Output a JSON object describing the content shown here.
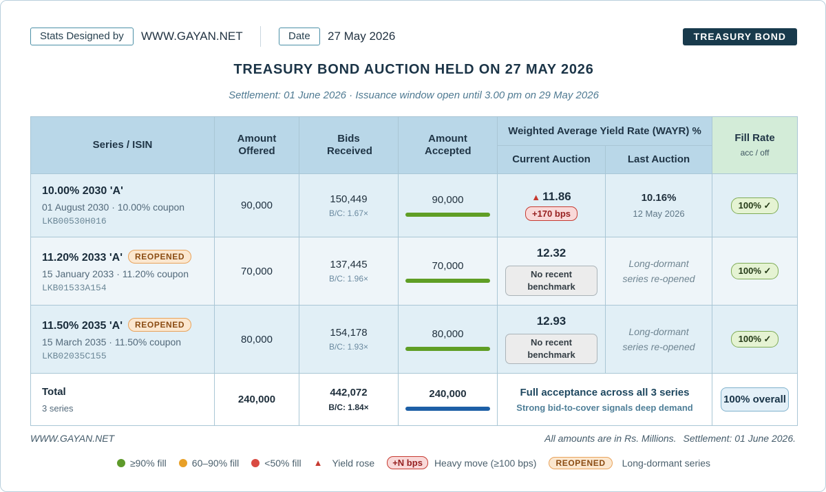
{
  "header": {
    "stats_label": "Stats Designed by",
    "site": "WWW.GAYAN.NET",
    "date_label": "Date",
    "date_value": "27 May 2026",
    "badge": "TREASURY BOND"
  },
  "title": "TREASURY BOND AUCTION HELD ON 27 MAY 2026",
  "subtitle": "Settlement: 01 June 2026 · Issuance window open until 3.00 pm on 29 May 2026",
  "table": {
    "headers": {
      "series": "Series / ISIN",
      "offered": "Amount Offered",
      "bids": "Bids Received",
      "accepted": "Amount Accepted",
      "wayr": "Weighted Average Yield Rate (WAYR) %",
      "current": "Current Auction",
      "last": "Last Auction",
      "fill": "Fill Rate",
      "fill_sub": "acc / off"
    },
    "rows": [
      {
        "name": "10.00% 2030 'A'",
        "reopened": "",
        "detail": "01 August 2030 · 10.00% coupon",
        "isin": "LKB00530H016",
        "offered": "90,000",
        "bids": "150,449",
        "bc": "B/C: 1.67×",
        "accepted": "90,000",
        "accept_ratio": 1.0,
        "current_yield": "11.86",
        "yield_change": "+170 bps",
        "last_yield": "10.16%",
        "last_date": "12 May 2026",
        "fill": "100% ✓"
      },
      {
        "name": "11.20% 2033 'A'",
        "reopened": "REOPENED",
        "detail": "15 January 2033 · 11.20% coupon",
        "isin": "LKB01533A154",
        "offered": "70,000",
        "bids": "137,445",
        "bc": "B/C: 1.96×",
        "accepted": "70,000",
        "accept_ratio": 1.0,
        "current_yield": "12.32",
        "no_benchmark": "No recent benchmark",
        "last_note": "Long-dormant series re-opened",
        "fill": "100% ✓"
      },
      {
        "name": "11.50% 2035 'A'",
        "reopened": "REOPENED",
        "detail": "15 March 2035 · 11.50% coupon",
        "isin": "LKB02035C155",
        "offered": "80,000",
        "bids": "154,178",
        "bc": "B/C: 1.93×",
        "accepted": "80,000",
        "accept_ratio": 1.0,
        "current_yield": "12.93",
        "no_benchmark": "No recent benchmark",
        "last_note": "Long-dormant series re-opened",
        "fill": "100% ✓"
      }
    ],
    "total": {
      "label": "Total",
      "sub": "3 series",
      "offered": "240,000",
      "bids": "442,072",
      "bc": "B/C: 1.84×",
      "accepted": "240,000",
      "message": "Full acceptance across all 3 series",
      "message_sub": "Strong bid-to-cover signals deep demand",
      "fill": "100% overall"
    }
  },
  "footer": {
    "site": "WWW.GAYAN.NET",
    "amounts_note": "All amounts are in Rs. Millions.",
    "settlement_note": "Settlement: 01 June 2026."
  },
  "legend": {
    "high_fill": "≥90% fill",
    "mid_fill": "60–90% fill",
    "low_fill": "<50% fill",
    "yield_rose": "Yield rose",
    "bps_badge": "+N bps",
    "heavy_move": "Heavy move (≥100 bps)",
    "reopened_badge": "REOPENED",
    "dormant": "Long-dormant series",
    "colors": {
      "high": "#5e9a2a",
      "mid": "#e8a028",
      "low": "#d94a42"
    }
  }
}
